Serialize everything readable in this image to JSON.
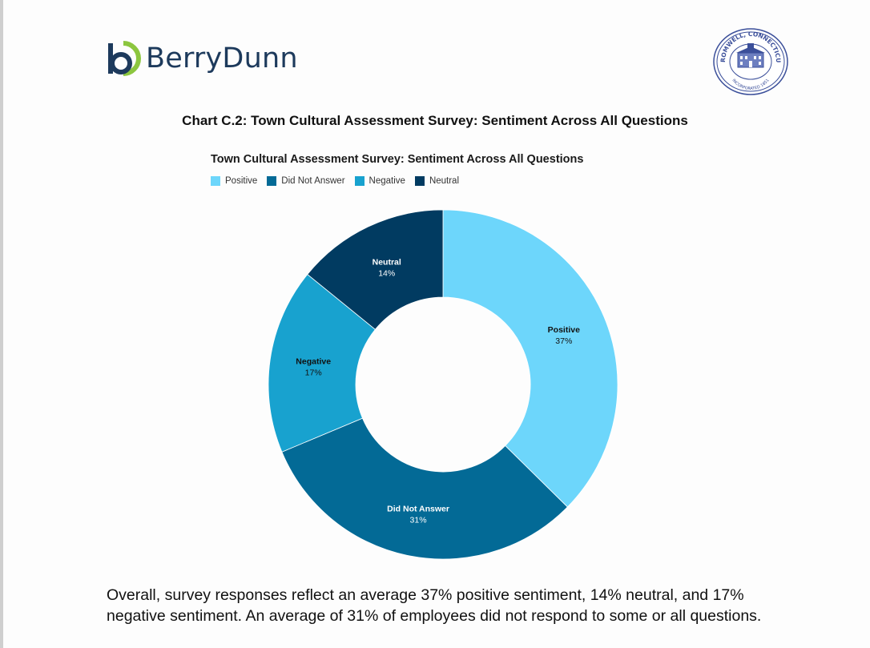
{
  "header": {
    "logo_text": "BerryDunn",
    "seal_top_text": "CROMWELL, CONNECTICUT",
    "seal_bottom_text": "INCORPORATED 1851"
  },
  "caption": "Chart C.2: Town Cultural Assessment Survey: Sentiment Across All Questions",
  "body_text": "Overall, survey responses reflect an average 37% positive sentiment, 14% neutral, and 17% negative sentiment. An average of 31% of employees did not respond to some or all questions.",
  "chart_data": {
    "type": "pie",
    "variant": "donut",
    "title": "Town Cultural Assessment Survey: Sentiment Across All Questions",
    "legend_position": "top-left",
    "categories": [
      "Positive",
      "Did Not Answer",
      "Negative",
      "Neutral"
    ],
    "values": [
      37,
      31,
      17,
      14
    ],
    "value_labels": [
      "37%",
      "31%",
      "17%",
      "14%"
    ],
    "colors": [
      "#6dd6fb",
      "#036a96",
      "#18a2cf",
      "#013b61"
    ],
    "label_colors": [
      "#111111",
      "#ffffff",
      "#111111",
      "#ffffff"
    ],
    "start_angle_deg": 0,
    "direction": "clockwise"
  },
  "legend": [
    {
      "label": "Positive",
      "color": "#6dd6fb"
    },
    {
      "label": "Did Not Answer",
      "color": "#036a96"
    },
    {
      "label": "Negative",
      "color": "#18a2cf"
    },
    {
      "label": "Neutral",
      "color": "#013b61"
    }
  ]
}
